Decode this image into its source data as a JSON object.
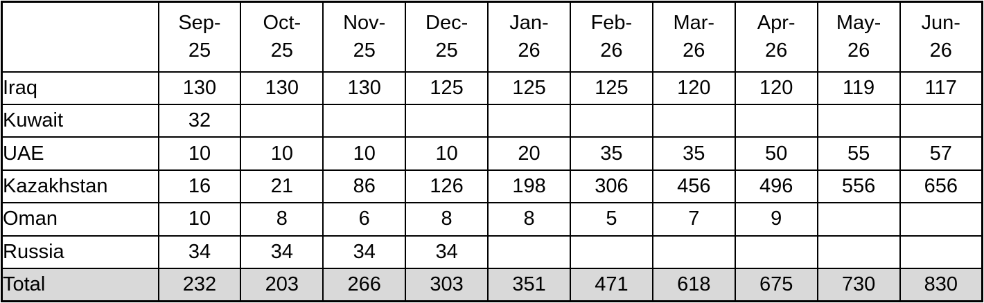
{
  "table": {
    "corner_label": "",
    "columns": [
      "Sep-25",
      "Oct-25",
      "Nov-25",
      "Dec-25",
      "Jan-26",
      "Feb-26",
      "Mar-26",
      "Apr-26",
      "May-26",
      "Jun-26"
    ],
    "rows": [
      {
        "label": "Iraq",
        "values": [
          "130",
          "130",
          "130",
          "125",
          "125",
          "125",
          "120",
          "120",
          "119",
          "117"
        ]
      },
      {
        "label": "Kuwait",
        "values": [
          "32",
          "",
          "",
          "",
          "",
          "",
          "",
          "",
          "",
          ""
        ]
      },
      {
        "label": "UAE",
        "values": [
          "10",
          "10",
          "10",
          "10",
          "20",
          "35",
          "35",
          "50",
          "55",
          "57"
        ]
      },
      {
        "label": "Kazakhstan",
        "values": [
          "16",
          "21",
          "86",
          "126",
          "198",
          "306",
          "456",
          "496",
          "556",
          "656"
        ]
      },
      {
        "label": "Oman",
        "values": [
          "10",
          "8",
          "6",
          "8",
          "8",
          "5",
          "7",
          "9",
          "",
          ""
        ]
      },
      {
        "label": "Russia",
        "values": [
          "34",
          "34",
          "34",
          "34",
          "",
          "",
          "",
          "",
          "",
          ""
        ]
      }
    ],
    "total_row": {
      "label": "Total",
      "values": [
        "232",
        "203",
        "266",
        "303",
        "351",
        "471",
        "618",
        "675",
        "730",
        "830"
      ]
    },
    "colors": {
      "total_row_bg": "#d9d9d9",
      "border": "#000000",
      "text": "#000000",
      "background": "#ffffff"
    }
  }
}
